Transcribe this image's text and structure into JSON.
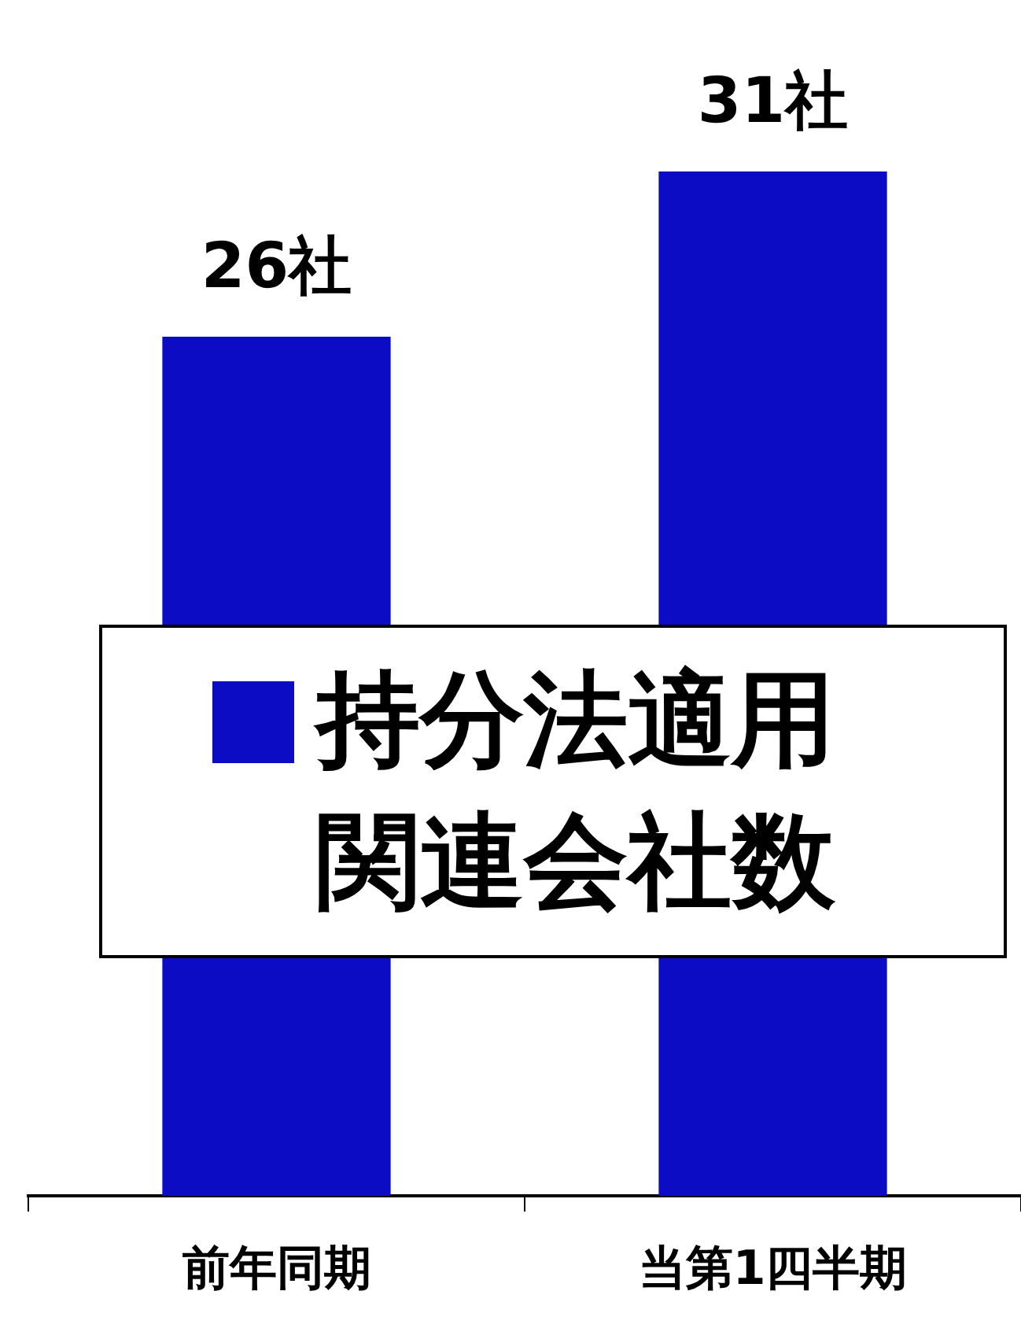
{
  "chart_data": {
    "type": "bar",
    "categories": [
      "前年同期",
      "当第1四半期"
    ],
    "series": [
      {
        "name": "持分法適用関連会社数",
        "color": "#0c0cc4",
        "values": [
          26,
          31
        ],
        "value_labels": [
          "26社",
          "31社"
        ]
      }
    ],
    "tick_labels": "x",
    "legend": "center",
    "grid": false
  }
}
